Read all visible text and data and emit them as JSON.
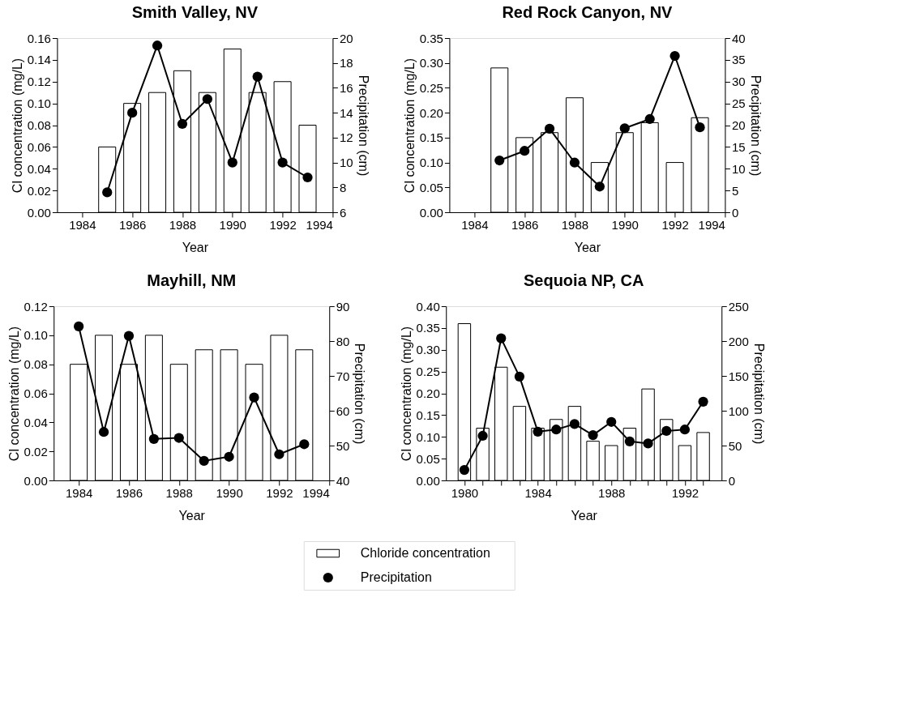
{
  "chart_data": [
    {
      "type": "bar",
      "title": "Smith Valley, NV",
      "xlabel": "Year",
      "ylabel": "Cl concentration (mg/L)",
      "y2label": "Precipitation (cm)",
      "x": [
        1985,
        1986,
        1987,
        1988,
        1989,
        1990,
        1991,
        1992,
        1993
      ],
      "series": [
        {
          "color": "#ffffff",
          "values": [
            0.06,
            0.1,
            0.11,
            0.13,
            0.11,
            0.15,
            0.11,
            0.12,
            0.08
          ]
        },
        {
          "type": "line",
          "axis": "y2",
          "color": "#000000",
          "values": [
            7.6,
            14.0,
            19.4,
            13.1,
            15.1,
            10.0,
            16.9,
            10.0,
            8.8
          ]
        }
      ],
      "xlim": [
        1983,
        1994
      ],
      "xticks": [
        1984,
        1986,
        1988,
        1990,
        1992,
        1994
      ],
      "ylim": [
        0,
        0.16
      ],
      "yticks": [
        {
          "value": 0,
          "label": "0.00"
        },
        {
          "value": 0.02,
          "label": "0.02"
        },
        {
          "value": 0.04,
          "label": "0.04"
        },
        {
          "value": 0.06,
          "label": "0.06"
        },
        {
          "value": 0.08,
          "label": "0.08"
        },
        {
          "value": 0.1,
          "label": "0.10"
        },
        {
          "value": 0.12,
          "label": "0.12"
        },
        {
          "value": 0.14,
          "label": "0.14"
        },
        {
          "value": 0.16,
          "label": "0.16"
        }
      ],
      "y2lim": [
        6,
        20
      ],
      "y2ticks": [
        6,
        8,
        10,
        12,
        14,
        16,
        18,
        20
      ],
      "marker": "circle",
      "line_style": "solid",
      "grid": false,
      "legend": false
    },
    {
      "type": "bar",
      "title": "Red Rock Canyon, NV",
      "xlabel": "Year",
      "ylabel": "Cl concentration (mg/L)",
      "y2label": "Precipitation (cm)",
      "x": [
        1985,
        1986,
        1987,
        1988,
        1989,
        1990,
        1991,
        1992,
        1993
      ],
      "series": [
        {
          "color": "#ffffff",
          "values": [
            0.29,
            0.15,
            0.16,
            0.23,
            0.1,
            0.16,
            0.18,
            0.1,
            0.19
          ]
        },
        {
          "type": "line",
          "axis": "y2",
          "color": "#000000",
          "values": [
            11.9,
            14.1,
            19.2,
            11.4,
            5.9,
            19.3,
            21.4,
            35.9,
            19.5
          ]
        }
      ],
      "xlim": [
        1983,
        1994
      ],
      "xticks": [
        1984,
        1986,
        1988,
        1990,
        1992,
        1994
      ],
      "ylim": [
        0,
        0.35
      ],
      "yticks": [
        {
          "value": 0,
          "label": "0.00"
        },
        {
          "value": 0.05,
          "label": "0.05"
        },
        {
          "value": 0.1,
          "label": "0.10"
        },
        {
          "value": 0.15,
          "label": "0.15"
        },
        {
          "value": 0.2,
          "label": "0.20"
        },
        {
          "value": 0.25,
          "label": "0.25"
        },
        {
          "value": 0.3,
          "label": "0.30"
        },
        {
          "value": 0.35,
          "label": "0.35"
        }
      ],
      "y2lim": [
        0,
        40
      ],
      "y2ticks": [
        0,
        5,
        10,
        15,
        20,
        25,
        30,
        35,
        40
      ],
      "marker": "circle",
      "line_style": "solid",
      "grid": false,
      "legend": false
    },
    {
      "type": "bar",
      "title": "Mayhill, NM",
      "xlabel": "Year",
      "ylabel": "Cl concentration (mg/L)",
      "y2label": "Precipitation (cm)",
      "x": [
        1984,
        1985,
        1986,
        1987,
        1988,
        1989,
        1990,
        1991,
        1992,
        1993
      ],
      "series": [
        {
          "color": "#ffffff",
          "values": [
            0.08,
            0.1,
            0.08,
            0.1,
            0.08,
            0.09,
            0.09,
            0.08,
            0.1,
            0.09
          ]
        },
        {
          "type": "line",
          "axis": "y2",
          "color": "#000000",
          "values": [
            84.2,
            53.9,
            81.5,
            51.9,
            52.2,
            45.6,
            46.8,
            63.8,
            47.5,
            50.4
          ]
        }
      ],
      "xlim": [
        1983,
        1994
      ],
      "xticks": [
        1984,
        1986,
        1988,
        1990,
        1992,
        1994
      ],
      "ylim": [
        0,
        0.12
      ],
      "yticks": [
        {
          "value": 0,
          "label": "0.00"
        },
        {
          "value": 0.02,
          "label": "0.02"
        },
        {
          "value": 0.04,
          "label": "0.04"
        },
        {
          "value": 0.06,
          "label": "0.06"
        },
        {
          "value": 0.08,
          "label": "0.08"
        },
        {
          "value": 0.1,
          "label": "0.10"
        },
        {
          "value": 0.12,
          "label": "0.12"
        }
      ],
      "y2lim": [
        40,
        90
      ],
      "y2ticks": [
        40,
        50,
        60,
        70,
        80,
        90
      ],
      "marker": "circle",
      "line_style": "solid",
      "grid": false,
      "legend": false
    },
    {
      "type": "bar",
      "title": "Sequoia NP, CA",
      "xlabel": "Year",
      "ylabel": "Cl concentration (mg/L)",
      "y2label": "Precipitation (cm)",
      "x": [
        1980,
        1981,
        1982,
        1983,
        1984,
        1985,
        1986,
        1987,
        1988,
        1989,
        1990,
        1991,
        1992,
        1993
      ],
      "series": [
        {
          "name": "Chloride concentration",
          "color": "#ffffff",
          "values": [
            0.36,
            0.12,
            0.26,
            0.17,
            0.12,
            0.14,
            0.17,
            0.09,
            0.08,
            0.12,
            0.21,
            0.14,
            0.08,
            0.11
          ]
        },
        {
          "type": "line",
          "name": "Precipitation",
          "axis": "y2",
          "color": "#000000",
          "values": [
            15,
            64,
            204,
            149,
            70,
            73,
            81,
            65,
            84,
            56,
            53,
            71,
            73,
            113
          ]
        }
      ],
      "xlim": [
        1979,
        1994
      ],
      "xticks": [
        1980,
        {
          "value": 1981,
          "label": null
        },
        {
          "value": 1982,
          "label": null
        },
        {
          "value": 1983,
          "label": null
        },
        1984,
        {
          "value": 1985,
          "label": null
        },
        {
          "value": 1986,
          "label": null
        },
        {
          "value": 1987,
          "label": null
        },
        1988,
        {
          "value": 1989,
          "label": null
        },
        {
          "value": 1990,
          "label": null
        },
        {
          "value": 1991,
          "label": null
        },
        1992,
        {
          "value": 1993,
          "label": null
        }
      ],
      "ylim": [
        0,
        0.4
      ],
      "yticks": [
        {
          "value": 0,
          "label": "0.00"
        },
        {
          "value": 0.05,
          "label": "0.05"
        },
        {
          "value": 0.1,
          "label": "0.10"
        },
        {
          "value": 0.15,
          "label": "0.15"
        },
        {
          "value": 0.2,
          "label": "0.20"
        },
        {
          "value": 0.25,
          "label": "0.25"
        },
        {
          "value": 0.3,
          "label": "0.30"
        },
        {
          "value": 0.35,
          "label": "0.35"
        },
        {
          "value": 0.4,
          "label": "0.40"
        }
      ],
      "y2lim": [
        0,
        250
      ],
      "y2ticks": [
        0,
        50,
        100,
        150,
        200,
        250
      ],
      "marker": "circle",
      "line_style": "solid",
      "grid": false,
      "legend": "bottom"
    }
  ]
}
